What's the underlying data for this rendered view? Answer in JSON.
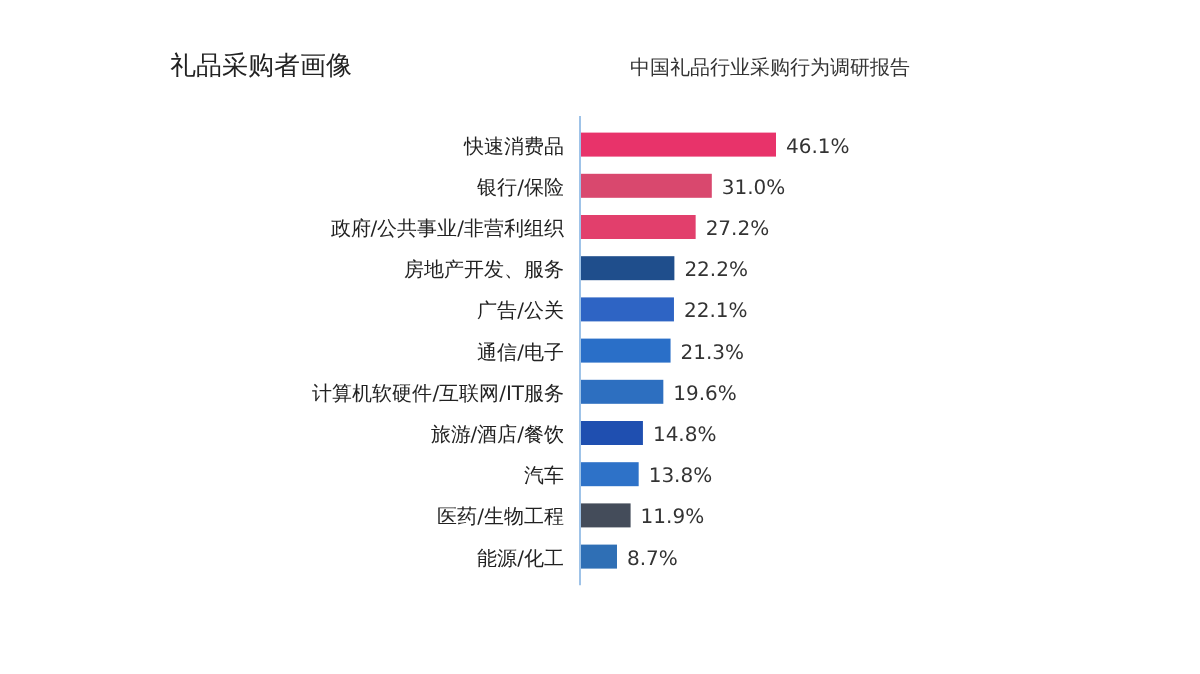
{
  "chart_data": {
    "type": "bar",
    "orientation": "horizontal",
    "title": "礼品采购者画像",
    "subtitle": "中国礼品行业采购行为调研报告",
    "categories": [
      "快速消费品",
      "银行/保险",
      "政府/公共事业/非营利组织",
      "房地产开发、服务",
      "广告/公关",
      "通信/电子",
      "计算机软硬件/互联网/IT服务",
      "旅游/酒店/餐饮",
      "汽车",
      "医药/生物工程",
      "能源/化工"
    ],
    "values": [
      46.1,
      31.0,
      27.2,
      22.2,
      22.1,
      21.3,
      19.6,
      14.8,
      13.8,
      11.9,
      8.7
    ],
    "value_labels": [
      "46.1%",
      "31.0%",
      "27.2%",
      "22.2%",
      "22.1%",
      "21.3%",
      "19.6%",
      "14.8%",
      "13.8%",
      "11.9%",
      "8.7%"
    ],
    "colors": [
      "#e8336a",
      "#d9486e",
      "#e23f6c",
      "#1f4e8c",
      "#2e64c4",
      "#2a6fc8",
      "#2d6fc0",
      "#1f4fb0",
      "#2e72c8",
      "#444c5a",
      "#2f6fb5"
    ]
  }
}
